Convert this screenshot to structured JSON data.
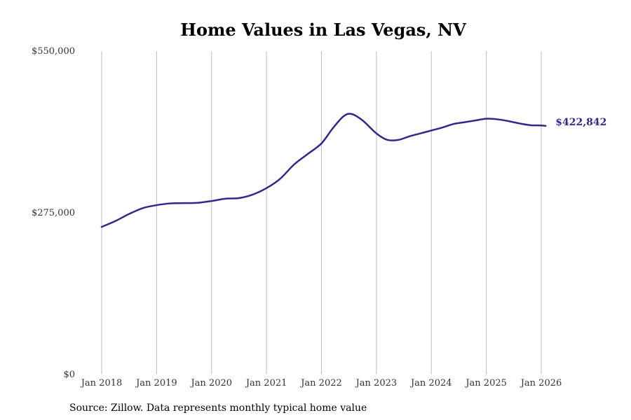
{
  "chart_data": {
    "type": "line",
    "title": "Home Values in Las Vegas, NV",
    "xlabel": "",
    "ylabel": "",
    "ylim": [
      0,
      550000
    ],
    "xlim": [
      2018.0,
      2026.0
    ],
    "x_ticks": [
      {
        "value": 2018,
        "label": "Jan 2018"
      },
      {
        "value": 2019,
        "label": "Jan 2019"
      },
      {
        "value": 2020,
        "label": "Jan 2020"
      },
      {
        "value": 2021,
        "label": "Jan 2021"
      },
      {
        "value": 2022,
        "label": "Jan 2022"
      },
      {
        "value": 2023,
        "label": "Jan 2023"
      },
      {
        "value": 2024,
        "label": "Jan 2024"
      },
      {
        "value": 2025,
        "label": "Jan 2025"
      },
      {
        "value": 2026,
        "label": "Jan 2026"
      }
    ],
    "y_ticks": [
      {
        "value": 0,
        "label": "$0"
      },
      {
        "value": 275000,
        "label": "$275,000"
      },
      {
        "value": 550000,
        "label": "$550,000"
      }
    ],
    "grid": "vertical",
    "series": [
      {
        "name": "Typical home value",
        "color": "#2e2a8a",
        "x": [
          2018.0,
          2018.25,
          2018.5,
          2018.75,
          2019.0,
          2019.25,
          2019.5,
          2019.75,
          2020.0,
          2020.25,
          2020.5,
          2020.75,
          2021.0,
          2021.25,
          2021.5,
          2021.75,
          2022.0,
          2022.2,
          2022.4,
          2022.55,
          2022.75,
          2023.0,
          2023.2,
          2023.4,
          2023.6,
          2023.8,
          2024.0,
          2024.2,
          2024.4,
          2024.6,
          2024.8,
          2025.0,
          2025.2,
          2025.4,
          2025.6,
          2025.8,
          2026.0,
          2026.08
        ],
        "values": [
          251000,
          261000,
          273000,
          283000,
          288000,
          291000,
          291500,
          292000,
          295000,
          299000,
          300000,
          306000,
          317000,
          333000,
          357000,
          375000,
          393000,
          418000,
          439000,
          443000,
          432000,
          410000,
          399000,
          399000,
          405000,
          410000,
          415000,
          420000,
          426000,
          429000,
          432000,
          435000,
          434000,
          431000,
          427000,
          424000,
          423500,
          422842
        ]
      }
    ],
    "end_label": "$422,842"
  },
  "source_note": "Source: Zillow. Data represents monthly typical home value"
}
